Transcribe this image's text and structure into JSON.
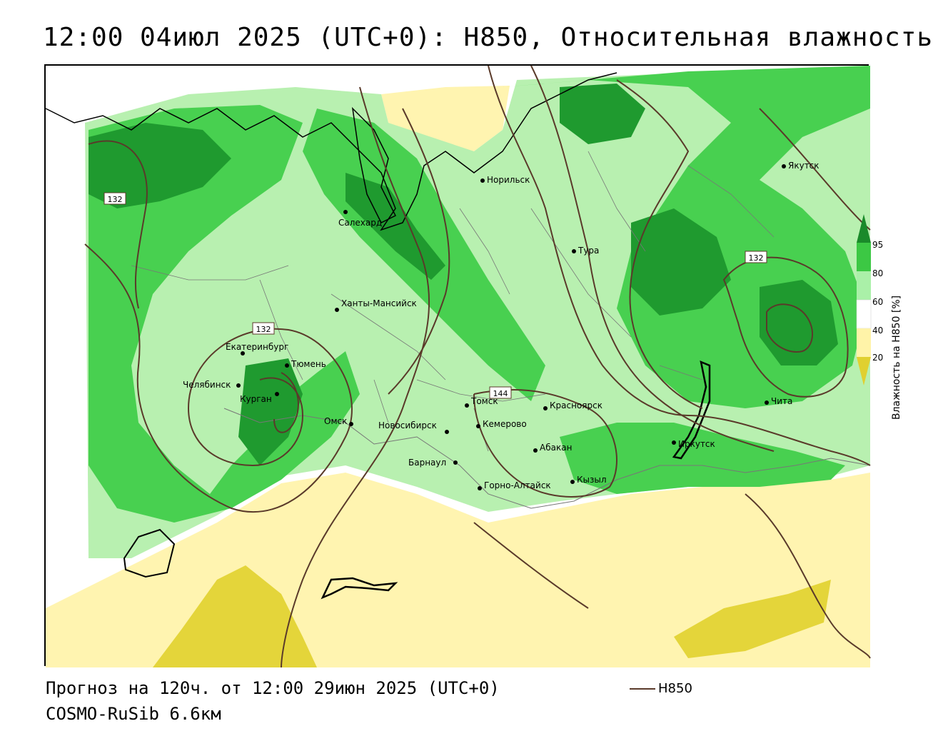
{
  "title": "12:00 04июл 2025 (UTC+0): H850, Относительная влажность",
  "footer": {
    "forecast": "Прогноз на 120ч. от 12:00 29июн 2025 (UTC+0)",
    "model": "COSMO-RuSib 6.6км",
    "legend_label": "H850"
  },
  "colorbar": {
    "title": "Влажность на H850 [%]",
    "ticks": [
      "95",
      "80",
      "60",
      "40",
      "20"
    ],
    "colors": [
      "#1a8a2a",
      "#3cc844",
      "#aaf0a8",
      "#ffffff",
      "#fff3a8",
      "#e0d030"
    ]
  },
  "colors": {
    "dark_green": "#1f9a2f",
    "green": "#48d050",
    "light_green": "#b8f0b0",
    "light_yellow": "#fff4b0",
    "yellow": "#e4d53a",
    "contour": "#5a3a2a",
    "border": "#000000"
  },
  "isolines": [
    {
      "label": "132"
    },
    {
      "label": "132"
    },
    {
      "label": "132"
    },
    {
      "label": "144"
    }
  ],
  "cities": [
    {
      "name": "Норильск"
    },
    {
      "name": "Якутск"
    },
    {
      "name": "Салехард"
    },
    {
      "name": "Тура"
    },
    {
      "name": "Ханты-Мансийск"
    },
    {
      "name": "Екатеринбург"
    },
    {
      "name": "Тюмень"
    },
    {
      "name": "Челябинск"
    },
    {
      "name": "Курган"
    },
    {
      "name": "Омск"
    },
    {
      "name": "Томск"
    },
    {
      "name": "Красноярск"
    },
    {
      "name": "Новосибирск"
    },
    {
      "name": "Кемерово"
    },
    {
      "name": "Абакан"
    },
    {
      "name": "Барнаул"
    },
    {
      "name": "Иркутск"
    },
    {
      "name": "Чита"
    },
    {
      "name": "Кызыл"
    },
    {
      "name": "Горно-Алтайск"
    }
  ]
}
